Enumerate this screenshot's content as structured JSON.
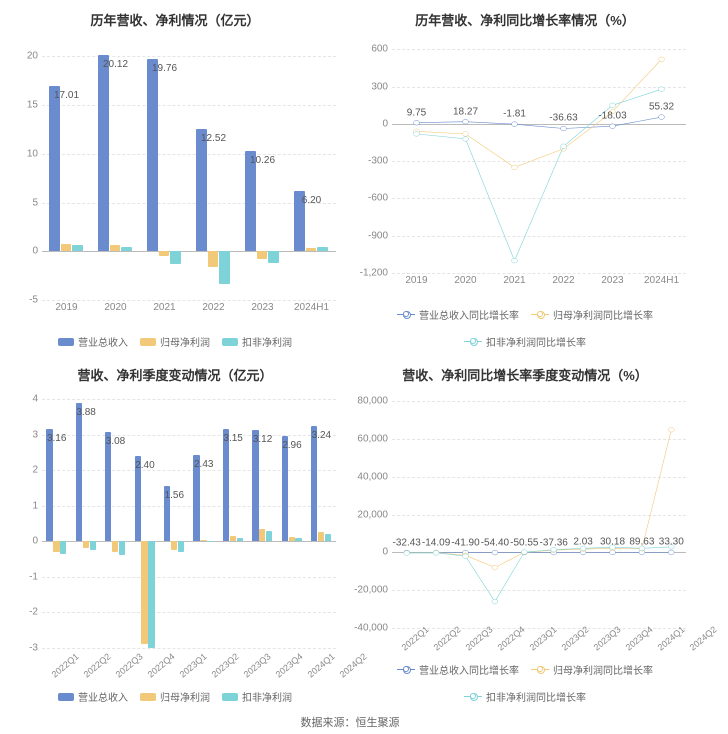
{
  "footer": "数据来源：恒生聚源",
  "colors": {
    "series1": "#6a8cce",
    "series2": "#f2c879",
    "series3": "#7dd3d8",
    "grid": "#e5e5e5",
    "axis": "#cccccc",
    "text": "#555555"
  },
  "panels": {
    "tl": {
      "title": "历年营收、净利情况（亿元）",
      "type": "bar",
      "categories": [
        "2019",
        "2020",
        "2021",
        "2022",
        "2023",
        "2024H1"
      ],
      "series": [
        {
          "name": "营业总收入",
          "color": "#6a8cce",
          "values": [
            17.01,
            20.12,
            19.76,
            12.52,
            10.26,
            6.2
          ],
          "labels": [
            "17.01",
            "20.12",
            "19.76",
            "12.52",
            "10.26",
            "6.20"
          ]
        },
        {
          "name": "归母净利润",
          "color": "#f2c879",
          "values": [
            0.7,
            0.6,
            -0.5,
            -1.6,
            -0.8,
            0.3
          ],
          "labels": []
        },
        {
          "name": "扣非净利润",
          "color": "#7dd3d8",
          "values": [
            0.6,
            0.4,
            -1.3,
            -3.4,
            -1.2,
            0.4
          ],
          "labels": []
        }
      ],
      "ylim": [
        -5,
        22
      ],
      "yticks": [
        -5,
        0,
        5,
        10,
        15,
        20
      ],
      "legend_style": "box"
    },
    "tr": {
      "title": "历年营收、净利同比增长率情况（%）",
      "type": "line",
      "categories": [
        "2019",
        "2020",
        "2021",
        "2022",
        "2023",
        "2024H1"
      ],
      "series": [
        {
          "name": "营业总收入同比增长率",
          "color": "#6a8cce",
          "values": [
            9.75,
            18.27,
            -1.81,
            -36.63,
            -18.03,
            55.32
          ],
          "labels": [
            "9.75",
            "18.27",
            "-1.81",
            "-36.63",
            "-18.03",
            "55.32"
          ],
          "showLabels": true
        },
        {
          "name": "归母净利润同比增长率",
          "color": "#f2c879",
          "values": [
            -60,
            -80,
            -350,
            -200,
            100,
            520
          ],
          "labels": [],
          "showLabels": false
        },
        {
          "name": "扣非净利润同比增长率",
          "color": "#7dd3d8",
          "values": [
            -80,
            -120,
            -1100,
            -180,
            150,
            280
          ],
          "labels": [],
          "showLabels": false
        }
      ],
      "ylim": [
        -1200,
        700
      ],
      "yticks": [
        -1200,
        -900,
        -600,
        -300,
        0,
        300,
        600
      ],
      "legend_style": "line"
    },
    "bl": {
      "title": "营收、净利季度变动情况（亿元）",
      "type": "bar",
      "categories": [
        "2022Q1",
        "2022Q2",
        "2022Q3",
        "2022Q4",
        "2023Q1",
        "2023Q2",
        "2023Q3",
        "2023Q4",
        "2024Q1",
        "2024Q2"
      ],
      "rotated": true,
      "series": [
        {
          "name": "营业总收入",
          "color": "#6a8cce",
          "values": [
            3.16,
            3.88,
            3.08,
            2.4,
            1.56,
            2.43,
            3.15,
            3.12,
            2.96,
            3.24
          ],
          "labels": [
            "3.16",
            "3.88",
            "3.08",
            "2.40",
            "1.56",
            "2.43",
            "3.15",
            "3.12",
            "2.96",
            "3.24"
          ]
        },
        {
          "name": "归母净利润",
          "color": "#f2c879",
          "values": [
            -0.3,
            -0.2,
            -0.3,
            -2.9,
            -0.25,
            0.03,
            0.15,
            0.35,
            0.12,
            0.25
          ],
          "labels": []
        },
        {
          "name": "扣非净利润",
          "color": "#7dd3d8",
          "values": [
            -0.35,
            -0.25,
            -0.4,
            -3.0,
            -0.3,
            0.02,
            0.1,
            0.3,
            0.1,
            0.2
          ],
          "labels": []
        }
      ],
      "ylim": [
        -3.2,
        4.2
      ],
      "yticks": [
        -3,
        -2,
        -1,
        0,
        1,
        2,
        3,
        4
      ],
      "legend_style": "box"
    },
    "br": {
      "title": "营收、净利同比增长率季度变动情况（%）",
      "type": "line",
      "categories": [
        "2022Q1",
        "2022Q2",
        "2022Q3",
        "2022Q4",
        "2023Q1",
        "2023Q2",
        "2023Q3",
        "2023Q4",
        "2024Q1",
        "2024Q2"
      ],
      "rotated": true,
      "series": [
        {
          "name": "营业总收入同比增长率",
          "color": "#6a8cce",
          "values": [
            -32.43,
            -14.09,
            -41.9,
            -54.4,
            -50.55,
            -37.36,
            2.03,
            30.18,
            89.63,
            33.3
          ],
          "labels": [
            "-32.43",
            "-14.09",
            "-41.90",
            "-54.40",
            "-50.55",
            "-37.36",
            "2.03",
            "30.18",
            "89.63",
            "33.30"
          ],
          "showLabels": true
        },
        {
          "name": "归母净利润同比增长率",
          "color": "#f2c879",
          "values": [
            -200,
            -100,
            -1500,
            -8000,
            100,
            1200,
            1800,
            2200,
            2000,
            65000
          ],
          "labels": [],
          "showLabels": false
        },
        {
          "name": "扣非净利润同比增长率",
          "color": "#7dd3d8",
          "values": [
            -300,
            -200,
            -2000,
            -26000,
            200,
            1500,
            2200,
            2800,
            2200,
            3000
          ],
          "labels": [],
          "showLabels": false
        }
      ],
      "ylim": [
        -40000,
        85000
      ],
      "yticks": [
        -40000,
        -20000,
        0,
        20000,
        40000,
        60000,
        80000
      ],
      "legend_style": "line"
    }
  }
}
